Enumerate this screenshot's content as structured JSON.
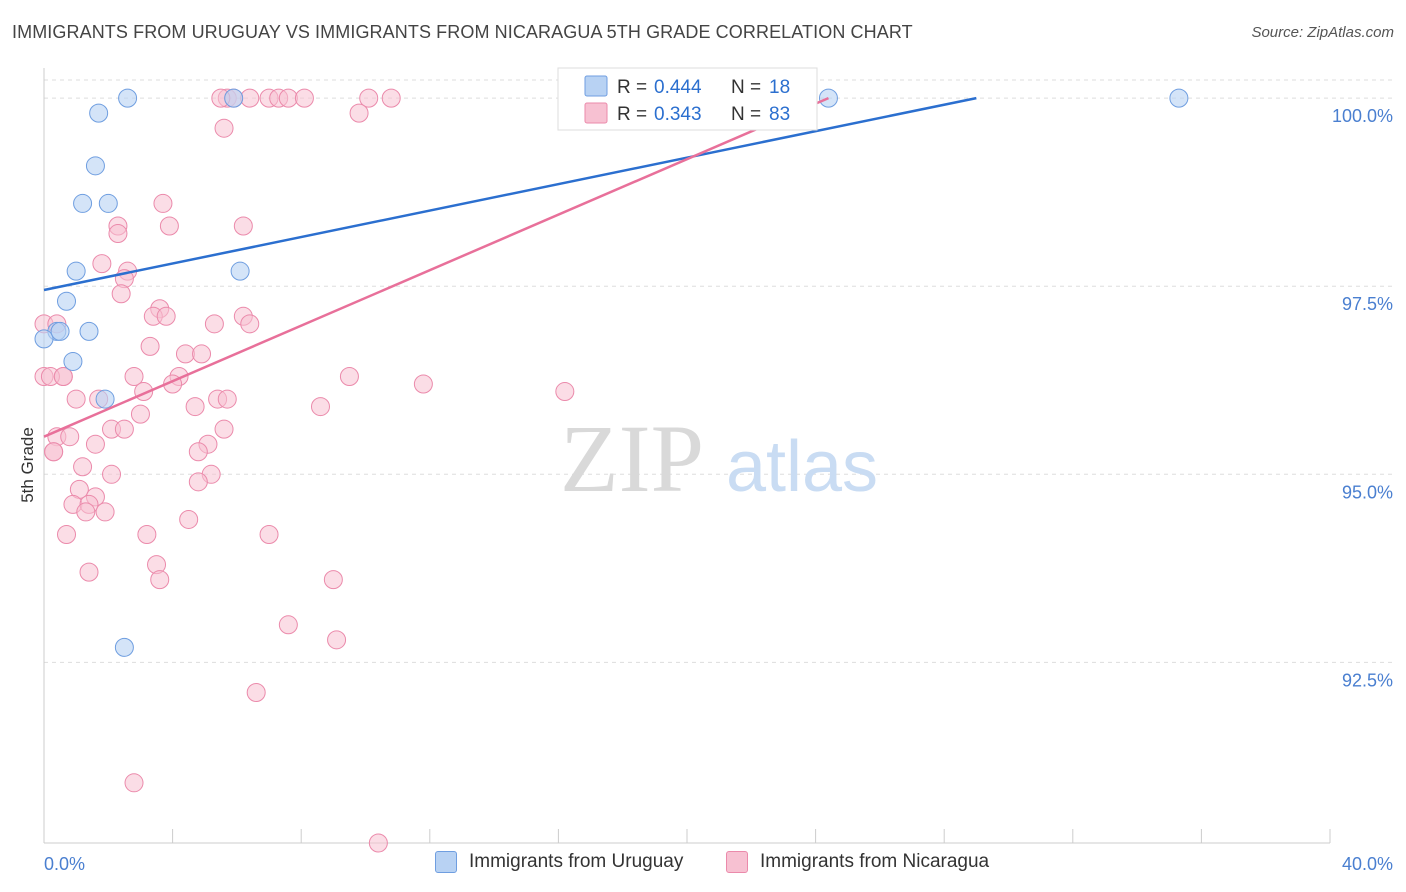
{
  "header": {
    "title": "IMMIGRANTS FROM URUGUAY VS IMMIGRANTS FROM NICARAGUA 5TH GRADE CORRELATION CHART",
    "source": "Source: ZipAtlas.com"
  },
  "watermark": {
    "zip": "ZIP",
    "atlas": "atlas"
  },
  "legend_stats": [
    {
      "r_label": "R =",
      "r_value": "0.444",
      "n_label": "N =",
      "n_value": "18"
    },
    {
      "r_label": "R =",
      "r_value": "0.343",
      "n_label": "N =",
      "n_value": "83"
    }
  ],
  "legend_bottom": [
    {
      "label": "Immigrants from Uruguay"
    },
    {
      "label": "Immigrants from Nicaragua"
    }
  ],
  "colors": {
    "uruguay_fill": "#b8d2f3",
    "uruguay_stroke": "#6f9ee0",
    "uruguay_line": "#2b6fcf",
    "nicaragua_fill": "#f7c1d2",
    "nicaragua_stroke": "#eb8aab",
    "nicaragua_line": "#e8709a",
    "tick_label": "#4a7fd0",
    "grid": "#dddddd"
  },
  "chart_data": {
    "type": "scatter",
    "title": "IMMIGRANTS FROM URUGUAY VS IMMIGRANTS FROM NICARAGUA 5TH GRADE CORRELATION CHART",
    "xlabel": "",
    "ylabel": "5th Grade",
    "xlim": [
      0,
      40
    ],
    "ylim": [
      90.1,
      100.4
    ],
    "x_tick_labels": [
      "0.0%",
      "40.0%"
    ],
    "y_ticks": [
      100.0,
      97.5,
      95.0,
      92.5
    ],
    "y_tick_labels": [
      "100.0%",
      "97.5%",
      "95.0%",
      "92.5%"
    ],
    "grid": true,
    "legend_position": "top-center",
    "series": [
      {
        "name": "Immigrants from Uruguay",
        "r": 0.444,
        "n": 18,
        "points": [
          [
            2.6,
            100.0
          ],
          [
            5.9,
            100.0
          ],
          [
            24.4,
            100.0
          ],
          [
            35.3,
            100.0
          ],
          [
            1.7,
            99.8
          ],
          [
            1.6,
            99.1
          ],
          [
            1.2,
            98.6
          ],
          [
            2.0,
            98.6
          ],
          [
            1.0,
            97.7
          ],
          [
            6.1,
            97.7
          ],
          [
            0.7,
            97.3
          ],
          [
            0.4,
            96.9
          ],
          [
            1.4,
            96.9
          ],
          [
            0.0,
            96.8
          ],
          [
            0.9,
            96.5
          ],
          [
            1.9,
            96.0
          ],
          [
            2.5,
            92.7
          ],
          [
            0.5,
            96.9
          ]
        ],
        "trend": {
          "x": [
            0.0,
            29.0
          ],
          "y": [
            97.45,
            100.0
          ]
        }
      },
      {
        "name": "Immigrants from Nicaragua",
        "r": 0.343,
        "n": 83,
        "points": [
          [
            5.7,
            100.0
          ],
          [
            5.9,
            100.0
          ],
          [
            6.4,
            100.0
          ],
          [
            7.0,
            100.0
          ],
          [
            7.3,
            100.0
          ],
          [
            7.6,
            100.0
          ],
          [
            8.1,
            100.0
          ],
          [
            10.1,
            100.0
          ],
          [
            10.8,
            100.0
          ],
          [
            5.5,
            100.0
          ],
          [
            9.8,
            99.8
          ],
          [
            5.6,
            99.6
          ],
          [
            3.7,
            98.6
          ],
          [
            3.9,
            98.3
          ],
          [
            2.3,
            98.3
          ],
          [
            6.2,
            98.3
          ],
          [
            2.3,
            98.2
          ],
          [
            1.8,
            97.8
          ],
          [
            2.6,
            97.7
          ],
          [
            2.5,
            97.6
          ],
          [
            2.4,
            97.4
          ],
          [
            3.6,
            97.2
          ],
          [
            3.4,
            97.1
          ],
          [
            3.8,
            97.1
          ],
          [
            6.2,
            97.1
          ],
          [
            6.4,
            97.0
          ],
          [
            5.3,
            97.0
          ],
          [
            0.0,
            97.0
          ],
          [
            3.3,
            96.7
          ],
          [
            4.4,
            96.6
          ],
          [
            4.9,
            96.6
          ],
          [
            2.8,
            96.3
          ],
          [
            4.2,
            96.3
          ],
          [
            9.5,
            96.3
          ],
          [
            0.0,
            96.3
          ],
          [
            0.6,
            96.3
          ],
          [
            4.0,
            96.2
          ],
          [
            11.8,
            96.2
          ],
          [
            16.2,
            96.1
          ],
          [
            3.1,
            96.1
          ],
          [
            1.0,
            96.0
          ],
          [
            5.4,
            96.0
          ],
          [
            5.7,
            96.0
          ],
          [
            1.7,
            96.0
          ],
          [
            4.7,
            95.9
          ],
          [
            8.6,
            95.9
          ],
          [
            3.0,
            95.8
          ],
          [
            2.1,
            95.6
          ],
          [
            2.5,
            95.6
          ],
          [
            5.6,
            95.6
          ],
          [
            0.4,
            95.5
          ],
          [
            0.8,
            95.5
          ],
          [
            1.6,
            95.4
          ],
          [
            5.1,
            95.4
          ],
          [
            0.3,
            95.3
          ],
          [
            4.8,
            95.3
          ],
          [
            1.2,
            95.1
          ],
          [
            2.1,
            95.0
          ],
          [
            5.2,
            95.0
          ],
          [
            4.8,
            94.9
          ],
          [
            1.1,
            94.8
          ],
          [
            1.6,
            94.7
          ],
          [
            0.9,
            94.6
          ],
          [
            1.4,
            94.6
          ],
          [
            1.9,
            94.5
          ],
          [
            1.3,
            94.5
          ],
          [
            4.5,
            94.4
          ],
          [
            0.7,
            94.2
          ],
          [
            3.2,
            94.2
          ],
          [
            7.0,
            94.2
          ],
          [
            3.5,
            93.8
          ],
          [
            1.4,
            93.7
          ],
          [
            3.6,
            93.6
          ],
          [
            9.0,
            93.6
          ],
          [
            7.6,
            93.0
          ],
          [
            9.1,
            92.8
          ],
          [
            6.6,
            92.1
          ],
          [
            2.8,
            90.9
          ],
          [
            10.4,
            90.1
          ],
          [
            0.2,
            96.3
          ],
          [
            0.4,
            97.0
          ],
          [
            0.6,
            96.3
          ],
          [
            0.3,
            95.3
          ]
        ],
        "trend": {
          "x": [
            0.0,
            24.4
          ],
          "y": [
            95.5,
            100.0
          ]
        }
      }
    ]
  }
}
